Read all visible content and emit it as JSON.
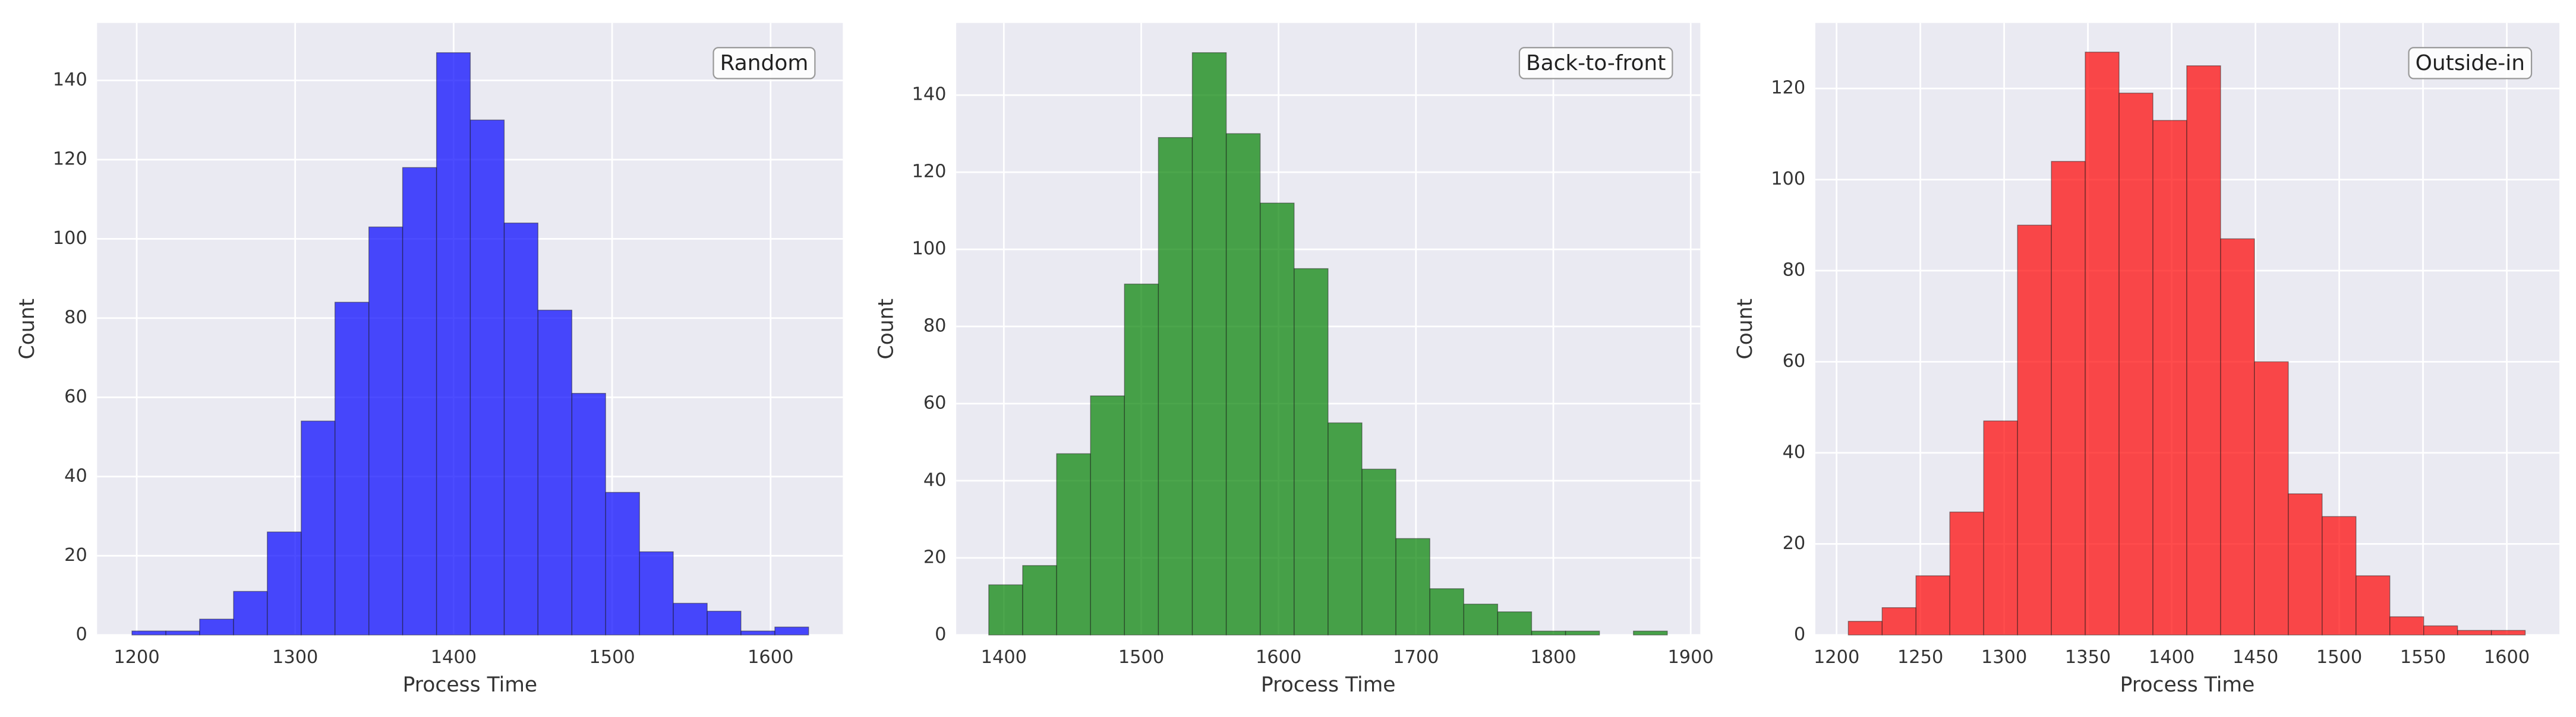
{
  "chart_data": [
    {
      "type": "histogram",
      "annotation": "Random",
      "xlabel": "Process Time",
      "ylabel": "Count",
      "color": "#0000ff",
      "grid": true,
      "bins": [
        1197,
        1218.4,
        1239.7,
        1261.1,
        1282.4,
        1303.8,
        1325.1,
        1346.5,
        1367.8,
        1389.2,
        1410.5,
        1431.9,
        1453.2,
        1474.6,
        1495.9,
        1517.3,
        1538.6,
        1560.0,
        1581.3,
        1602.7,
        1624
      ],
      "values": [
        1,
        1,
        4,
        11,
        26,
        54,
        84,
        103,
        118,
        147,
        130,
        104,
        82,
        61,
        36,
        21,
        8,
        6,
        1,
        2
      ],
      "xlim": [
        1175,
        1645.6
      ],
      "xticks": [
        1200,
        1300,
        1400,
        1500,
        1600
      ],
      "ylim": [
        0,
        154.5
      ],
      "yticks": [
        0,
        20,
        40,
        60,
        80,
        100,
        120,
        140
      ]
    },
    {
      "type": "histogram",
      "annotation": "Back-to-front",
      "xlabel": "Process Time",
      "ylabel": "Count",
      "color": "#008000",
      "grid": true,
      "bins": [
        1389,
        1413.7,
        1438.4,
        1463.1,
        1487.8,
        1512.5,
        1537.2,
        1561.9,
        1586.6,
        1611.3,
        1636,
        1660.7,
        1685.4,
        1710.1,
        1734.8,
        1759.5,
        1784.2,
        1808.9,
        1833.6,
        1858.3,
        1883
      ],
      "values": [
        13,
        18,
        47,
        62,
        91,
        129,
        151,
        130,
        112,
        95,
        55,
        43,
        25,
        12,
        8,
        6,
        1,
        1,
        0,
        1
      ],
      "xlim": [
        1365.3,
        1907
      ],
      "xticks": [
        1400,
        1500,
        1600,
        1700,
        1800,
        1900
      ],
      "ylim": [
        0,
        158.7
      ],
      "yticks": [
        0,
        20,
        40,
        60,
        80,
        100,
        120,
        140
      ]
    },
    {
      "type": "histogram",
      "annotation": "Outside-in",
      "xlabel": "Process Time",
      "ylabel": "Count",
      "color": "#ff0000",
      "grid": true,
      "bins": [
        1207,
        1227.2,
        1247.4,
        1267.6,
        1287.8,
        1308,
        1328.2,
        1348.4,
        1368.6,
        1388.8,
        1409,
        1429.2,
        1449.4,
        1469.6,
        1489.8,
        1510,
        1530.2,
        1550.4,
        1570.6,
        1590.8,
        1611
      ],
      "values": [
        3,
        6,
        13,
        27,
        47,
        90,
        104,
        128,
        119,
        113,
        125,
        87,
        60,
        31,
        26,
        13,
        4,
        2,
        1,
        1
      ],
      "xlim": [
        1187.3,
        1631.4
      ],
      "xticks": [
        1200,
        1250,
        1300,
        1350,
        1400,
        1450,
        1500,
        1550,
        1600
      ],
      "ylim": [
        0,
        134.4
      ],
      "yticks": [
        0,
        20,
        40,
        60,
        80,
        100,
        120
      ]
    }
  ]
}
